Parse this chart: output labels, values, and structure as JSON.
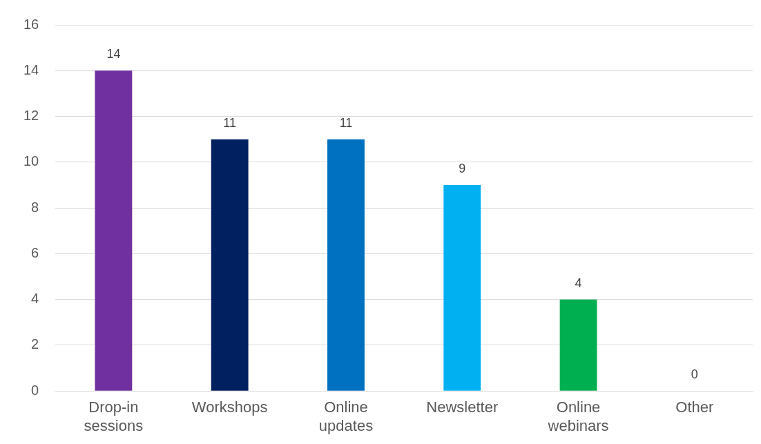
{
  "chart_data": {
    "type": "bar",
    "categories": [
      "Drop-in sessions",
      "Workshops",
      "Online updates",
      "Newsletter",
      "Online webinars",
      "Other"
    ],
    "values": [
      14,
      11,
      11,
      9,
      4,
      0
    ],
    "colors": [
      "#7030a0",
      "#002060",
      "#0070c0",
      "#00b0f0",
      "#00b050",
      "#ffc000"
    ],
    "ylim": [
      0,
      16
    ],
    "yticks": [
      0,
      2,
      4,
      6,
      8,
      10,
      12,
      14,
      16
    ],
    "grid": "y",
    "data_labels": true,
    "legend": false
  }
}
